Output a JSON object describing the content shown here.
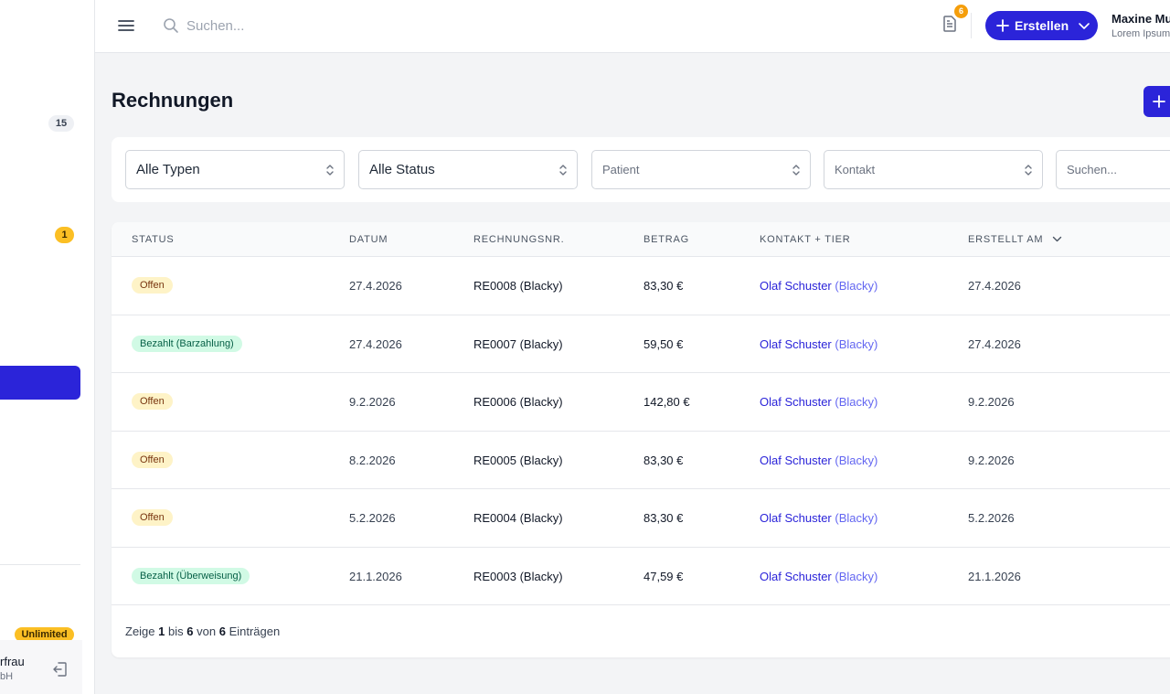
{
  "sidebar": {
    "badge_count_1": "15",
    "badge_count_2": "1",
    "plan_badge": "Unlimited",
    "user_name": "rfrau",
    "user_company": "bH"
  },
  "header": {
    "search_placeholder": "Suchen...",
    "notification_count": "6",
    "create_label": "Erstellen",
    "user_name": "Maxine Mu",
    "user_subtitle": "Lorem Ipsum"
  },
  "page": {
    "title": "Rechnungen"
  },
  "filters": {
    "type": "Alle Typen",
    "status": "Alle Status",
    "patient_placeholder": "Patient",
    "contact_placeholder": "Kontakt",
    "search_placeholder": "Suchen..."
  },
  "table": {
    "columns": [
      "Status",
      "Datum",
      "Rechnungsnr.",
      "Betrag",
      "Kontakt + Tier",
      "Erstellt am"
    ],
    "rows": [
      {
        "status": "Offen",
        "status_type": "offen",
        "datum": "27.4.2026",
        "nr": "RE0008 (Blacky)",
        "betrag": "83,30 €",
        "kontakt": "Olaf Schuster",
        "tier": "(Blacky)",
        "erstellt": "27.4.2026"
      },
      {
        "status": "Bezahlt  (Barzahlung)",
        "status_type": "bezahlt",
        "datum": "27.4.2026",
        "nr": "RE0007 (Blacky)",
        "betrag": "59,50 €",
        "kontakt": "Olaf Schuster",
        "tier": "(Blacky)",
        "erstellt": "27.4.2026"
      },
      {
        "status": "Offen",
        "status_type": "offen",
        "datum": "9.2.2026",
        "nr": "RE0006 (Blacky)",
        "betrag": "142,80 €",
        "kontakt": "Olaf Schuster",
        "tier": "(Blacky)",
        "erstellt": "9.2.2026"
      },
      {
        "status": "Offen",
        "status_type": "offen",
        "datum": "8.2.2026",
        "nr": "RE0005 (Blacky)",
        "betrag": "83,30 €",
        "kontakt": "Olaf Schuster",
        "tier": "(Blacky)",
        "erstellt": "9.2.2026"
      },
      {
        "status": "Offen",
        "status_type": "offen",
        "datum": "5.2.2026",
        "nr": "RE0004 (Blacky)",
        "betrag": "83,30 €",
        "kontakt": "Olaf Schuster",
        "tier": "(Blacky)",
        "erstellt": "5.2.2026"
      },
      {
        "status": "Bezahlt  (Überweisung)",
        "status_type": "bezahlt",
        "datum": "21.1.2026",
        "nr": "RE0003 (Blacky)",
        "betrag": "47,59 €",
        "kontakt": "Olaf Schuster",
        "tier": "(Blacky)",
        "erstellt": "21.1.2026"
      }
    ],
    "footer": {
      "prefix": "Zeige",
      "from": "1",
      "mid1": "bis",
      "to": "6",
      "mid2": "von",
      "total": "6",
      "suffix": "Einträgen"
    }
  },
  "colors": {
    "accent": "#2b24d9",
    "warning": "#fbbf24",
    "paid_bg": "#d1fae5",
    "open_bg": "#fef3c7"
  },
  "icons": [
    "menu-icon",
    "search-icon",
    "document-icon",
    "plus-icon",
    "chevron-down-icon",
    "updown-icon",
    "logout-icon"
  ]
}
